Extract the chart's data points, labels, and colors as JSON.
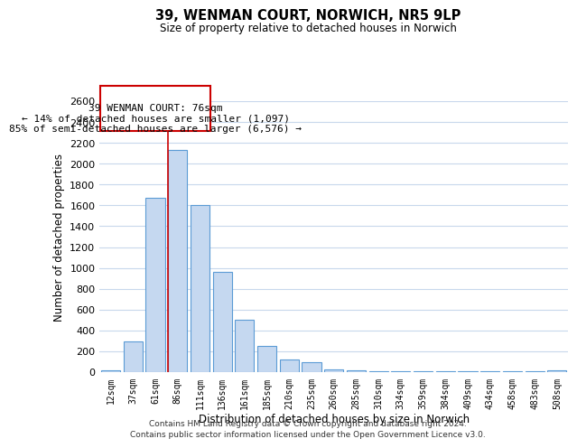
{
  "title": "39, WENMAN COURT, NORWICH, NR5 9LP",
  "subtitle": "Size of property relative to detached houses in Norwich",
  "xlabel": "Distribution of detached houses by size in Norwich",
  "ylabel": "Number of detached properties",
  "categories": [
    "12sqm",
    "37sqm",
    "61sqm",
    "86sqm",
    "111sqm",
    "136sqm",
    "161sqm",
    "185sqm",
    "210sqm",
    "235sqm",
    "260sqm",
    "285sqm",
    "310sqm",
    "334sqm",
    "359sqm",
    "384sqm",
    "409sqm",
    "434sqm",
    "458sqm",
    "483sqm",
    "508sqm"
  ],
  "values": [
    20,
    295,
    1670,
    2130,
    1600,
    960,
    505,
    255,
    120,
    95,
    30,
    15,
    5,
    5,
    5,
    5,
    5,
    5,
    5,
    5,
    15
  ],
  "bar_color": "#c5d8f0",
  "bar_edge_color": "#5b9bd5",
  "vline_color": "#cc0000",
  "annotation_text_line1": "39 WENMAN COURT: 76sqm",
  "annotation_text_line2": "← 14% of detached houses are smaller (1,097)",
  "annotation_text_line3": "85% of semi-detached houses are larger (6,576) →",
  "ylim": [
    0,
    2600
  ],
  "yticks": [
    0,
    200,
    400,
    600,
    800,
    1000,
    1200,
    1400,
    1600,
    1800,
    2000,
    2200,
    2400,
    2600
  ],
  "footer_line1": "Contains HM Land Registry data © Crown copyright and database right 2024.",
  "footer_line2": "Contains public sector information licensed under the Open Government Licence v3.0.",
  "background_color": "#ffffff",
  "grid_color": "#c8d8ec"
}
